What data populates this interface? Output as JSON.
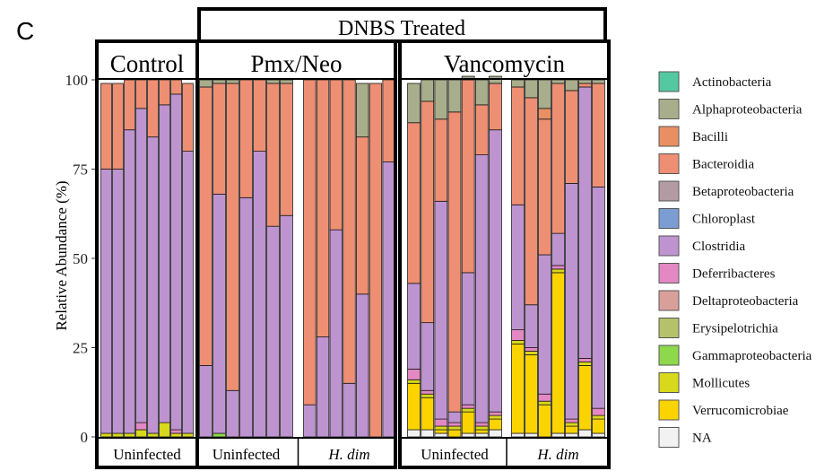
{
  "panel_label": "C",
  "header_label": "DNBS Treated",
  "chart_data": {
    "type": "bar",
    "stacked": true,
    "ylabel": "Relative Abundance (%)",
    "ylim": [
      0,
      100
    ],
    "yticks": [
      0,
      25,
      50,
      75,
      100
    ],
    "groups": [
      {
        "title": "Control",
        "subgroups": [
          {
            "label": "Uninfected",
            "italic": false,
            "n_bars": 8
          }
        ]
      },
      {
        "title": "Pmx/Neo",
        "subgroups": [
          {
            "label": "Uninfected",
            "italic": false,
            "n_bars": 7
          },
          {
            "label": "H. dim",
            "italic": true,
            "n_bars": 7
          }
        ]
      },
      {
        "title": "Vancomycin",
        "subgroups": [
          {
            "label": "Uninfected",
            "italic": false,
            "n_bars": 7
          },
          {
            "label": "H. dim",
            "italic": true,
            "n_bars": 7
          }
        ]
      }
    ],
    "series": [
      {
        "name": "NA",
        "color": "#f2f2f2",
        "values": [
          0,
          0,
          0,
          0,
          0,
          0,
          0,
          0,
          0,
          0,
          0,
          0,
          0,
          0,
          0,
          0,
          0,
          0,
          0,
          0,
          0,
          0,
          2,
          2,
          1,
          0,
          1,
          1,
          2,
          1,
          1,
          0,
          1,
          1,
          2,
          1
        ]
      },
      {
        "name": "Verrucomicrobiae",
        "color": "#fbd400",
        "values": [
          0,
          0,
          0,
          0,
          0,
          0,
          0,
          0,
          0,
          0,
          0,
          0,
          0,
          0,
          0,
          0,
          0,
          0,
          0,
          0,
          0,
          0,
          13,
          9,
          1,
          2,
          6,
          1,
          3,
          25,
          22,
          9,
          45,
          2,
          18,
          4
        ]
      },
      {
        "name": "Mollicutes",
        "color": "#d8d81c",
        "values": [
          1,
          1,
          1,
          2,
          1,
          4,
          1,
          1,
          0,
          0,
          0,
          0,
          0,
          0,
          0,
          0,
          0,
          0,
          0,
          0,
          0,
          0,
          1,
          1,
          1,
          1,
          1,
          1,
          1,
          1,
          1,
          1,
          1,
          1,
          1,
          1
        ]
      },
      {
        "name": "Gammaproteobacteria",
        "color": "#8ed84b",
        "values": [
          0,
          0,
          0,
          0,
          0,
          0,
          0,
          0,
          0,
          1,
          0,
          0,
          0,
          0,
          0,
          0,
          0,
          0,
          0,
          0,
          0,
          0,
          0,
          0,
          0,
          0,
          0,
          0,
          0,
          0,
          0,
          0,
          0,
          0,
          0,
          0
        ]
      },
      {
        "name": "Erysipelotrichia",
        "color": "#b5c26a",
        "values": [
          0,
          0,
          0,
          0,
          0,
          0,
          0,
          0,
          0,
          0,
          0,
          0,
          0,
          0,
          0,
          0,
          0,
          0,
          0,
          0,
          0,
          0,
          0,
          0,
          0,
          0,
          0,
          0,
          0,
          0,
          0,
          0,
          0,
          0,
          0,
          0
        ]
      },
      {
        "name": "Deltaproteobacteria",
        "color": "#d9a09a",
        "values": [
          0,
          0,
          0,
          0,
          0,
          0,
          0,
          0,
          0,
          0,
          0,
          0,
          0,
          0,
          0,
          0,
          0,
          0,
          0,
          0,
          0,
          0,
          0,
          0,
          0,
          0,
          0,
          0,
          0,
          0,
          0,
          0,
          0,
          0,
          0,
          0
        ]
      },
      {
        "name": "Deferribacteres",
        "color": "#e388c3",
        "values": [
          0,
          0,
          0,
          2,
          0,
          0,
          1,
          0,
          0,
          0,
          0,
          0,
          0,
          0,
          0,
          0,
          0,
          0,
          0,
          0,
          0,
          0,
          3,
          1,
          2,
          1,
          1,
          1,
          1,
          3,
          1,
          2,
          1,
          1,
          1,
          2
        ]
      },
      {
        "name": "Clostridia",
        "color": "#be94d0",
        "values": [
          74,
          74,
          85,
          88,
          83,
          89,
          94,
          79,
          20,
          67,
          13,
          67,
          80,
          59,
          62,
          9,
          28,
          58,
          15,
          40,
          0,
          77,
          24,
          19,
          61,
          3,
          37,
          75,
          79,
          35,
          12,
          39,
          9,
          66,
          76,
          62
        ]
      },
      {
        "name": "Chloroplast",
        "color": "#7b9dd4",
        "values": [
          0,
          0,
          0,
          0,
          0,
          0,
          0,
          0,
          0,
          0,
          0,
          0,
          0,
          0,
          0,
          0,
          0,
          0,
          0,
          0,
          0,
          0,
          0,
          0,
          0,
          0,
          0,
          0,
          0,
          0,
          0,
          0,
          0,
          0,
          0,
          0
        ]
      },
      {
        "name": "Betaproteobacteria",
        "color": "#b49aa3",
        "values": [
          0,
          0,
          0,
          0,
          0,
          0,
          0,
          0,
          0,
          0,
          0,
          0,
          0,
          0,
          0,
          0,
          0,
          0,
          0,
          0,
          0,
          0,
          0,
          0,
          0,
          0,
          0,
          0,
          0,
          0,
          0,
          0,
          0,
          0,
          0,
          0
        ]
      },
      {
        "name": "Bacteroidia",
        "color": "#ee8f73",
        "values": [
          24,
          24,
          14,
          8,
          16,
          7,
          4,
          19,
          78,
          31,
          86,
          33,
          20,
          40,
          37,
          91,
          72,
          42,
          85,
          44,
          99,
          23,
          45,
          62,
          23,
          84,
          54,
          14,
          13,
          33,
          58,
          38,
          42,
          26,
          1,
          29
        ]
      },
      {
        "name": "Bacilli",
        "color": "#e89063",
        "values": [
          0,
          0,
          0,
          0,
          0,
          0,
          0,
          0,
          0,
          0,
          0,
          0,
          0,
          0,
          0,
          0,
          0,
          0,
          0,
          0,
          0,
          0,
          0,
          0,
          0,
          0,
          0,
          0,
          0,
          0,
          0,
          3,
          0,
          0,
          0,
          0
        ]
      },
      {
        "name": "Alphaproteobacteria",
        "color": "#a8ae8b",
        "values": [
          0,
          0,
          0,
          0,
          0,
          0,
          0,
          0,
          2,
          1,
          1,
          0,
          0,
          1,
          1,
          0,
          0,
          0,
          0,
          15,
          0,
          0,
          11,
          6,
          11,
          9,
          1,
          7,
          2,
          2,
          5,
          8,
          1,
          3,
          1,
          1
        ]
      },
      {
        "name": "Actinobacteria",
        "color": "#54c8a1",
        "values": [
          0,
          0,
          0,
          0,
          0,
          0,
          0,
          0,
          0,
          0,
          0,
          0,
          0,
          0,
          0,
          0,
          0,
          0,
          0,
          0,
          0,
          0,
          0,
          0,
          0,
          0,
          0,
          0,
          0,
          0,
          0,
          0,
          0,
          0,
          0,
          0
        ]
      }
    ],
    "legend": {
      "placement": "right",
      "entries": [
        "Actinobacteria",
        "Alphaproteobacteria",
        "Bacilli",
        "Bacteroidia",
        "Betaproteobacteria",
        "Chloroplast",
        "Clostridia",
        "Deferribacteres",
        "Deltaproteobacteria",
        "Erysipelotrichia",
        "Gammaproteobacteria",
        "Mollicutes",
        "Verrucomicrobiae",
        "NA"
      ]
    }
  }
}
